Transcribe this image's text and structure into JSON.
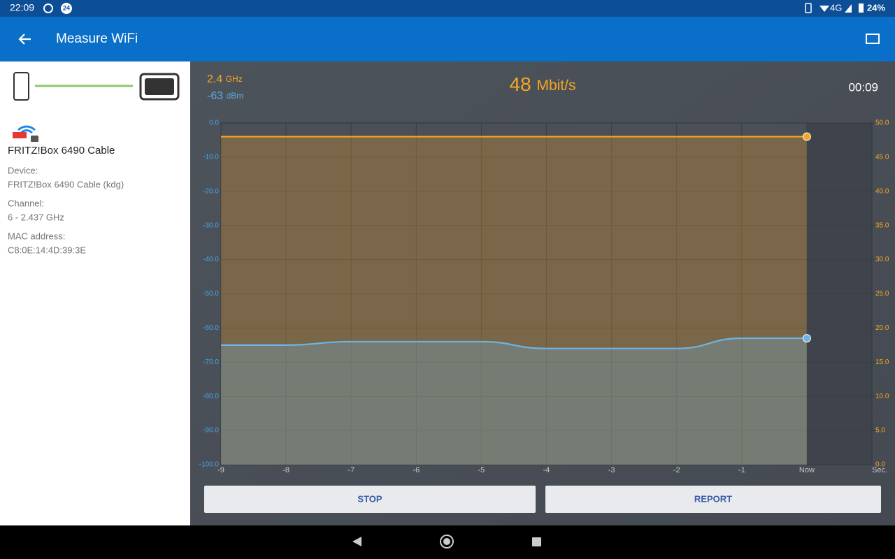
{
  "status_bar": {
    "time": "22:09",
    "badge": "24",
    "network": "4G",
    "battery": "24%"
  },
  "app_bar": {
    "title": "Measure WiFi"
  },
  "connection": {
    "network_name": "FRITZ!Box 6490 Cable",
    "details": [
      {
        "label": "Device:",
        "value": "FRITZ!Box 6490 Cable (kdg)"
      },
      {
        "label": "Channel:",
        "value": "6 - 2.437 GHz"
      },
      {
        "label": "MAC address:",
        "value": "C8:0E:14:4D:39:3E"
      }
    ]
  },
  "readout": {
    "band": "2.4",
    "band_unit": "GHz",
    "signal": "-63",
    "signal_unit": "dBm",
    "speed": "48",
    "speed_unit": "Mbit/s",
    "elapsed": "00:09"
  },
  "chart_data": {
    "type": "line",
    "x": [
      -9,
      -8,
      -7,
      -6,
      -5,
      -4,
      -3,
      -2,
      -1,
      0
    ],
    "xlim": [
      -9,
      1
    ],
    "xticks": [
      -9,
      -8,
      -7,
      -6,
      -5,
      -4,
      -3,
      -2,
      -1,
      {
        "value": 0,
        "label": "Now"
      }
    ],
    "x_unit": "Sec.",
    "ylim": [
      -100,
      0
    ],
    "yticks": [
      {
        "value": 0,
        "label": "0.0"
      },
      {
        "value": -10,
        "label": "-10.0"
      },
      {
        "value": -20,
        "label": "-20.0"
      },
      {
        "value": -30,
        "label": "-30.0"
      },
      {
        "value": -40,
        "label": "-40.0"
      },
      {
        "value": -50,
        "label": "-50.0"
      },
      {
        "value": -60,
        "label": "-60.0"
      },
      {
        "value": -70,
        "label": "-70.0"
      },
      {
        "value": -80,
        "label": "-80.0"
      },
      {
        "value": -90,
        "label": "-90.0"
      },
      {
        "value": -100,
        "label": "-100.0"
      }
    ],
    "y2lim": [
      0,
      50
    ],
    "y2ticks": [
      {
        "value": 50,
        "label": "50.0"
      },
      {
        "value": 45,
        "label": "45.0"
      },
      {
        "value": 40,
        "label": "40.0"
      },
      {
        "value": 35,
        "label": "35.0"
      },
      {
        "value": 30,
        "label": "30.0"
      },
      {
        "value": 25,
        "label": "25.0"
      },
      {
        "value": 20,
        "label": "20.0"
      },
      {
        "value": 15,
        "label": "15.0"
      },
      {
        "value": 10,
        "label": "10.0"
      },
      {
        "value": 5,
        "label": "5.0"
      },
      {
        "value": 0,
        "label": "0.0"
      }
    ],
    "grid": true,
    "series": [
      {
        "color": "#f5a623",
        "axis": "y2",
        "values": [
          48,
          48,
          48,
          48,
          48,
          48,
          48,
          48,
          48,
          48
        ]
      },
      {
        "color": "#6cb4e4",
        "values": [
          -65,
          -65,
          -64,
          -64,
          -64,
          -66,
          -66,
          -66,
          -63,
          -63
        ]
      }
    ]
  },
  "buttons": {
    "stop": "STOP",
    "report": "REPORT"
  }
}
